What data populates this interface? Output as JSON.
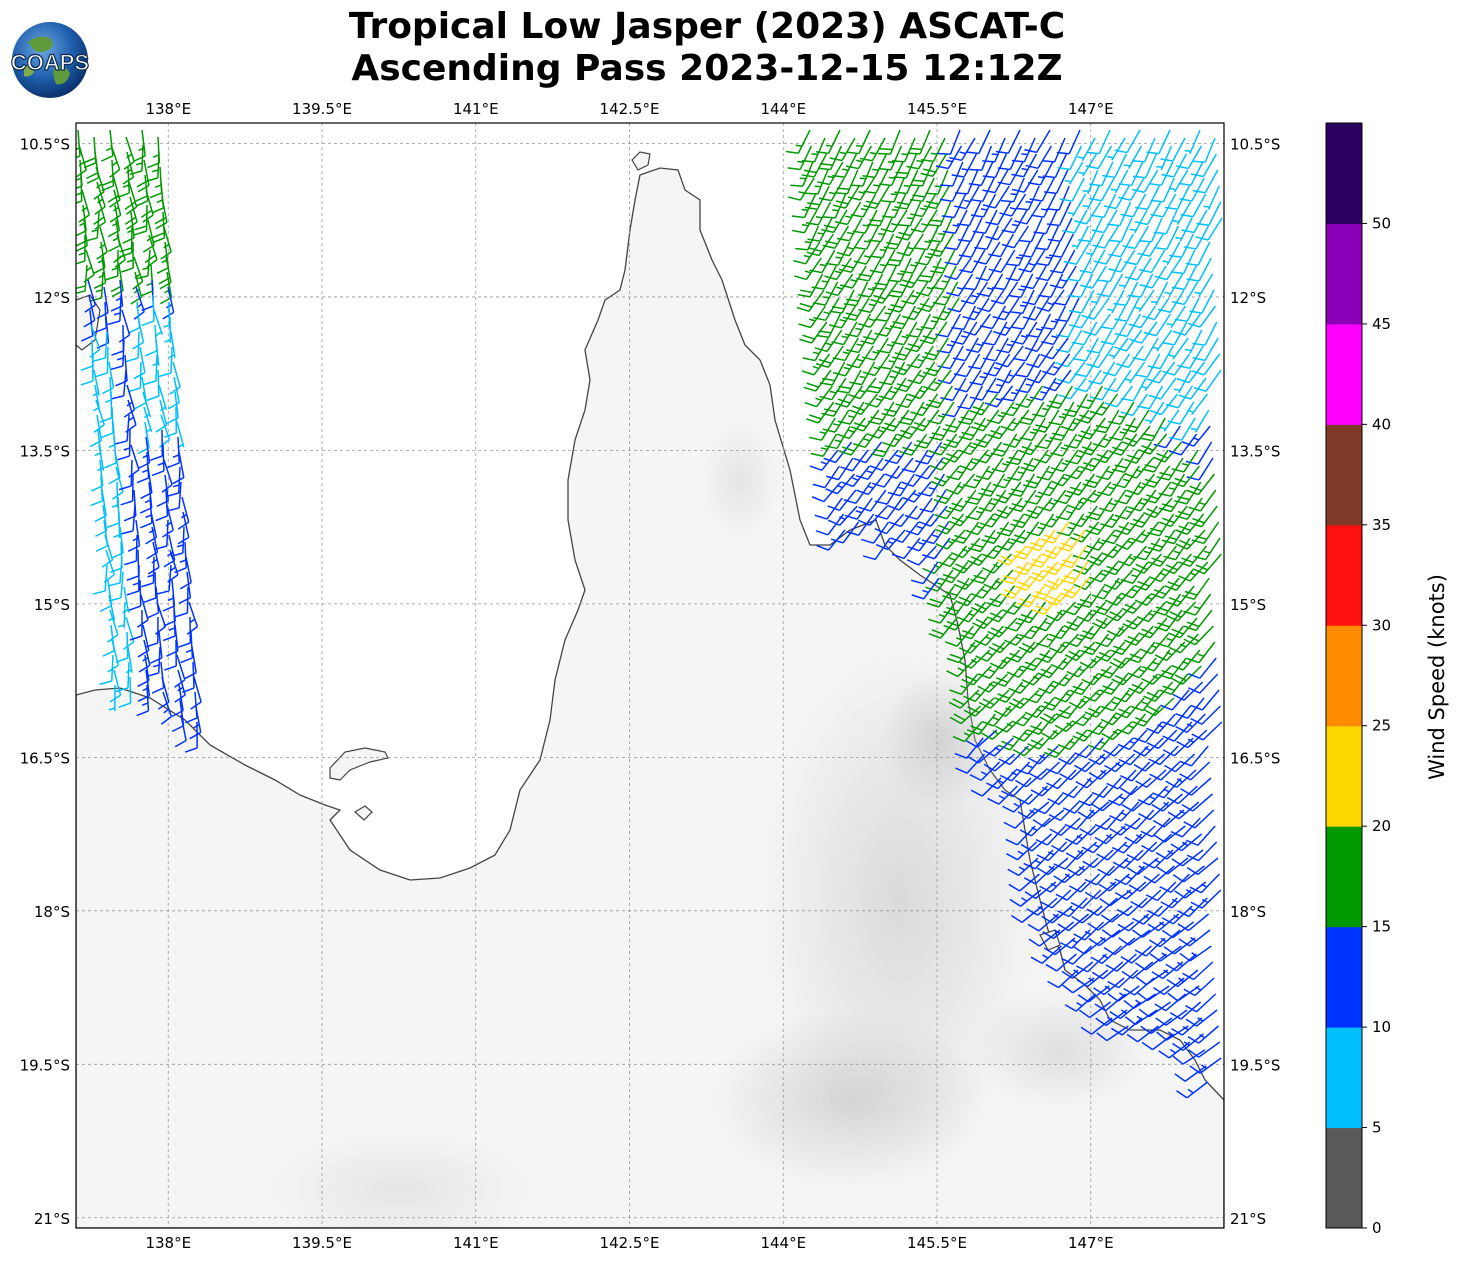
{
  "title": {
    "line1": "Tropical Low Jasper (2023) ASCAT-C",
    "line2": "Ascending Pass 2023-12-15 12:12Z"
  },
  "logo": {
    "text": "COAPS",
    "icon": "globe-icon"
  },
  "map": {
    "lon_range": [
      137.1,
      148.3
    ],
    "lat_range": [
      -21.1,
      -10.3
    ],
    "lon_ticks": [
      138,
      139.5,
      141,
      142.5,
      144,
      145.5,
      147
    ],
    "lon_labels": [
      "138°E",
      "139.5°E",
      "141°E",
      "142.5°E",
      "144°E",
      "145.5°E",
      "147°E"
    ],
    "lat_ticks": [
      -10.5,
      -12,
      -13.5,
      -15,
      -16.5,
      -18,
      -19.5,
      -21
    ],
    "lat_labels": [
      "10.5°S",
      "12°S",
      "13.5°S",
      "15°S",
      "16.5°S",
      "18°S",
      "19.5°S",
      "21°S"
    ],
    "gridlines": true,
    "land_color": "#f4f4f4",
    "coast_color": "#444444"
  },
  "colorbar": {
    "label": "Wind Speed (knots)",
    "ticks": [
      0,
      5,
      10,
      15,
      20,
      25,
      30,
      35,
      40,
      45,
      50
    ],
    "tick_labels": [
      "0",
      "5",
      "10",
      "15",
      "20",
      "25",
      "30",
      "35",
      "40",
      "45",
      "50"
    ],
    "colors": [
      "#595959",
      "#00bfff",
      "#0033ff",
      "#009900",
      "#ffd700",
      "#ff8c00",
      "#ff1010",
      "#7f3a2a",
      "#ff00ff",
      "#8b00b8",
      "#2a0060"
    ]
  },
  "wind_swaths": [
    {
      "name": "east-swath",
      "lon_range": [
        144.0,
        148.3
      ],
      "lat_range": [
        -19.9,
        -10.3
      ],
      "coverage": "ocean-east"
    },
    {
      "name": "west-swath",
      "lon_range": [
        137.1,
        138.4
      ],
      "lat_range": [
        -16.6,
        -10.3
      ],
      "coverage": "gulf-of-carpentaria"
    }
  ]
}
